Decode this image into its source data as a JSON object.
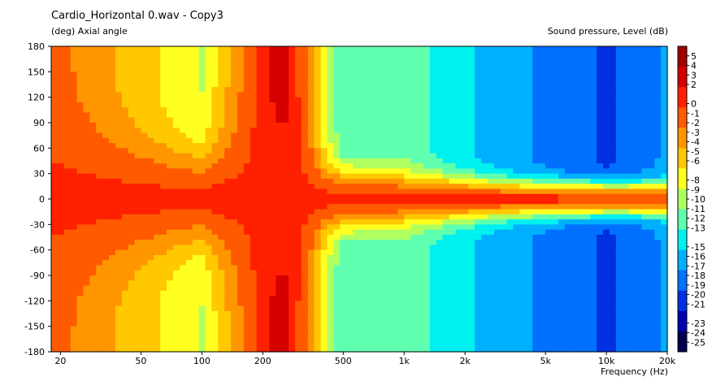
{
  "chart_data": {
    "type": "heatmap",
    "title": "Cardio_Horizontal 0.wav - Copy3",
    "ylabel": "(deg)  Axial angle",
    "xlabel": "Frequency  (Hz)",
    "colorbar_label": "Sound pressure, Level  (dB)",
    "x_scale": "log",
    "xlim": [
      18,
      20000
    ],
    "ylim": [
      -180,
      180
    ],
    "x_ticks": [
      {
        "value": 20,
        "label": "20"
      },
      {
        "value": 50,
        "label": "50"
      },
      {
        "value": 100,
        "label": "100"
      },
      {
        "value": 200,
        "label": "200"
      },
      {
        "value": 500,
        "label": "500"
      },
      {
        "value": 1000,
        "label": "1k"
      },
      {
        "value": 2000,
        "label": "2k"
      },
      {
        "value": 5000,
        "label": "5k"
      },
      {
        "value": 10000,
        "label": "10k"
      },
      {
        "value": 20000,
        "label": "20k"
      }
    ],
    "y_ticks": [
      "180",
      "150",
      "120",
      "90",
      "60",
      "30",
      "0",
      "-30",
      "-60",
      "-90",
      "-120",
      "-150",
      "-180"
    ],
    "colorbar_ticks": [
      "5",
      "4",
      "3",
      "2",
      "0",
      "-1",
      "-2",
      "-3",
      "-4",
      "-5",
      "-6",
      "-8",
      "-9",
      "-10",
      "-11",
      "-12",
      "-13",
      "-15",
      "-16",
      "-17",
      "-18",
      "-19",
      "-20",
      "-21",
      "-23",
      "-24",
      "-25"
    ],
    "colorbar_colors": [
      "#a00000",
      "#d40000",
      "#ff2000",
      "#ff5a00",
      "#ff9600",
      "#ffc800",
      "#ffff20",
      "#b0ff60",
      "#60ffb0",
      "#00f0f0",
      "#00b0ff",
      "#0070ff",
      "#0030e0",
      "#0000b0",
      "#000050"
    ],
    "colorbar_range": [
      -26,
      6
    ],
    "on_axis_level_db": 0,
    "main_lobe_width_deg": [
      {
        "freq": 20,
        "width": 150
      },
      {
        "freq": 50,
        "width": 110
      },
      {
        "freq": 100,
        "width": 90
      },
      {
        "freq": 250,
        "width": 180
      },
      {
        "freq": 400,
        "width": 65
      },
      {
        "freq": 1000,
        "width": 50
      },
      {
        "freq": 3000,
        "width": 36
      },
      {
        "freq": 10000,
        "width": 32
      },
      {
        "freq": 20000,
        "width": 30
      }
    ],
    "off_axis_floor_db": [
      {
        "freq": 20,
        "level": -2
      },
      {
        "freq": 50,
        "level": -6
      },
      {
        "freq": 100,
        "level": -9
      },
      {
        "freq": 250,
        "level": 4
      },
      {
        "freq": 500,
        "level": -13
      },
      {
        "freq": 1000,
        "level": -12
      },
      {
        "freq": 2000,
        "level": -15
      },
      {
        "freq": 5000,
        "level": -18
      },
      {
        "freq": 10000,
        "level": -20
      },
      {
        "freq": 20000,
        "level": -17
      }
    ],
    "grid": false
  }
}
